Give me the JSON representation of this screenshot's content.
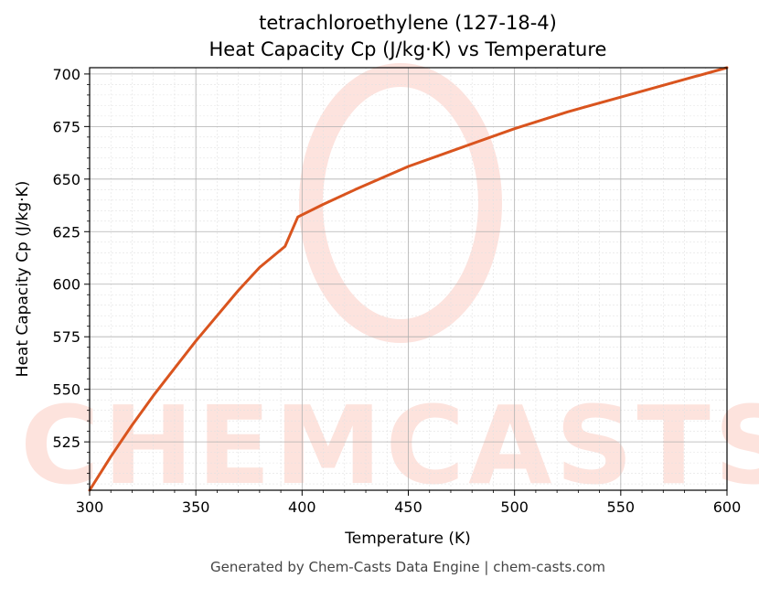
{
  "chart_data": {
    "type": "line",
    "title": "tetrachloroethylene (127-18-4)",
    "subtitle": "Heat Capacity Cp (J/kg·K) vs Temperature",
    "xlabel": "Temperature (K)",
    "ylabel": "Heat Capacity Cp (J/kg·K)",
    "xlim": [
      300,
      600
    ],
    "ylim": [
      502,
      703
    ],
    "xticks": [
      300,
      350,
      400,
      450,
      500,
      550,
      600
    ],
    "yticks": [
      525,
      550,
      575,
      600,
      625,
      650,
      675,
      700
    ],
    "grid": true,
    "series": [
      {
        "color": "#d9541e",
        "x": [
          300,
          310,
          320,
          330,
          340,
          350,
          360,
          370,
          380,
          392,
          398,
          410,
          425,
          450,
          475,
          500,
          525,
          550,
          575,
          600
        ],
        "y": [
          502,
          518,
          533,
          547,
          560,
          573,
          585,
          597,
          608,
          618,
          632,
          638,
          645,
          656,
          665,
          674,
          682,
          689,
          696,
          703
        ]
      }
    ]
  },
  "watermark": {
    "text": "CHEMCASTS",
    "color": "#fde0da"
  },
  "footer": "Generated by Chem-Casts Data Engine | chem-casts.com"
}
